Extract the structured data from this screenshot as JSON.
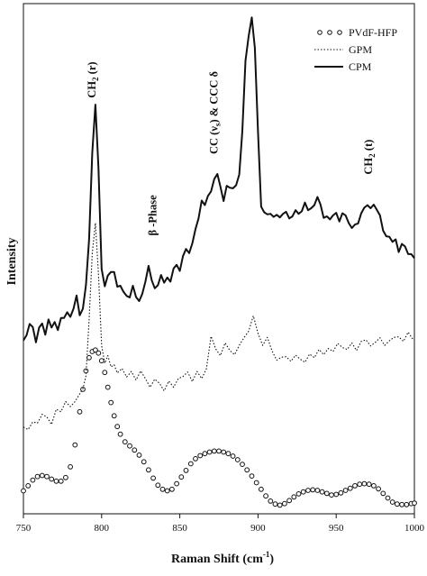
{
  "chart_data": {
    "type": "line",
    "xlabel": "Raman Shift (cm",
    "xlabel_sup": "-1",
    "xlabel_close": ")",
    "ylabel": "Intensity",
    "xlim": [
      750,
      1000
    ],
    "ylim": [
      0,
      100
    ],
    "x_ticks": [
      "750",
      "800",
      "850",
      "900",
      "950",
      "1000"
    ],
    "legend_position": "top-right",
    "colors": {
      "line": "#111111",
      "marker_fill": "#ffffff"
    },
    "annotations": [
      {
        "label": "CH",
        "sub": "2",
        "tail": " (r)",
        "x": 796,
        "y": 81.5,
        "rotate": true
      },
      {
        "label": "β -Phase",
        "sub": "",
        "tail": "",
        "x": 835,
        "y": 54.5,
        "rotate": true
      },
      {
        "label": "CC (ν",
        "sub": "s",
        "tail": ") & CCC δ",
        "x": 874,
        "y": 70.5,
        "rotate": true
      },
      {
        "label": "CH",
        "sub": "2",
        "tail": " (t)",
        "x": 973,
        "y": 66.5,
        "rotate": true
      }
    ],
    "series": [
      {
        "name": "PVdF-HFP",
        "style": "markers",
        "x": [
          750,
          753,
          756,
          759,
          762,
          765,
          768,
          771,
          774,
          777,
          780,
          783,
          786,
          788,
          790,
          792,
          794,
          796,
          798,
          800,
          802,
          804,
          806,
          808,
          810,
          812,
          815,
          818,
          821,
          824,
          827,
          830,
          833,
          836,
          839,
          842,
          845,
          848,
          851,
          854,
          857,
          860,
          863,
          866,
          869,
          872,
          875,
          878,
          881,
          884,
          887,
          890,
          893,
          896,
          899,
          902,
          905,
          908,
          911,
          914,
          917,
          920,
          923,
          926,
          929,
          932,
          935,
          938,
          941,
          944,
          947,
          950,
          953,
          956,
          959,
          962,
          965,
          968,
          971,
          974,
          977,
          980,
          983,
          986,
          989,
          992,
          995,
          998,
          1000
        ],
        "y": [
          4.5,
          5.5,
          6.6,
          7.3,
          7.5,
          7.3,
          6.8,
          6.4,
          6.4,
          7.1,
          9.2,
          13.5,
          20.0,
          24.4,
          28.0,
          30.6,
          31.8,
          32.1,
          31.5,
          30.0,
          27.7,
          24.8,
          21.8,
          19.2,
          17.1,
          15.6,
          14.1,
          13.3,
          12.5,
          11.5,
          10.2,
          8.6,
          7.0,
          5.6,
          4.8,
          4.5,
          4.8,
          5.9,
          7.2,
          8.5,
          9.8,
          10.8,
          11.4,
          11.8,
          12.1,
          12.3,
          12.3,
          12.1,
          11.8,
          11.3,
          10.6,
          9.7,
          8.6,
          7.4,
          6.1,
          4.8,
          3.5,
          2.5,
          1.9,
          1.7,
          2.0,
          2.6,
          3.3,
          3.9,
          4.3,
          4.6,
          4.7,
          4.6,
          4.3,
          4.0,
          3.7,
          3.8,
          4.1,
          4.6,
          5.0,
          5.5,
          5.8,
          5.9,
          5.8,
          5.5,
          4.9,
          4.0,
          3.1,
          2.3,
          1.9,
          1.8,
          1.8,
          2.0,
          2.1
        ]
      },
      {
        "name": "GPM",
        "style": "dotted",
        "x": [
          750,
          753,
          756,
          759,
          762,
          765,
          768,
          771,
          774,
          777,
          780,
          783,
          786,
          788,
          790,
          792,
          794,
          796,
          798,
          800,
          802,
          804,
          806,
          808,
          810,
          813,
          816,
          819,
          822,
          825,
          828,
          831,
          834,
          837,
          840,
          843,
          846,
          849,
          852,
          855,
          858,
          861,
          864,
          867,
          870,
          873,
          876,
          879,
          882,
          885,
          888,
          891,
          894,
          897,
          900,
          903,
          906,
          909,
          912,
          915,
          918,
          921,
          924,
          927,
          930,
          933,
          936,
          939,
          942,
          945,
          948,
          951,
          954,
          957,
          960,
          963,
          966,
          969,
          972,
          975,
          978,
          981,
          984,
          987,
          990,
          993,
          996,
          999,
          1000
        ],
        "y": [
          17.0,
          16.5,
          18.0,
          17.8,
          19.5,
          19.0,
          17.5,
          20.5,
          20.0,
          22.0,
          21.0,
          22.0,
          23.5,
          24.5,
          27.0,
          38.0,
          51.0,
          57.0,
          47.0,
          33.0,
          29.5,
          31.0,
          28.8,
          29.2,
          27.6,
          28.5,
          26.8,
          27.9,
          26.2,
          28.0,
          26.5,
          24.8,
          26.4,
          25.6,
          24.1,
          26.0,
          24.8,
          26.5,
          26.9,
          27.8,
          25.9,
          27.9,
          26.5,
          28.4,
          34.8,
          32.3,
          31.0,
          33.5,
          32.0,
          31.2,
          33.0,
          34.5,
          35.8,
          38.8,
          35.4,
          33.0,
          34.6,
          31.9,
          30.1,
          30.7,
          30.8,
          29.9,
          31.1,
          30.3,
          29.7,
          31.3,
          30.6,
          32.2,
          31.2,
          32.4,
          31.8,
          33.4,
          32.6,
          32.2,
          33.5,
          32.0,
          33.8,
          34.1,
          32.9,
          33.6,
          34.5,
          33.0,
          33.9,
          34.6,
          34.7,
          33.8,
          35.6,
          34.2,
          34.0
        ]
      },
      {
        "name": "CPM",
        "style": "solid",
        "x": [
          750,
          752,
          754,
          756,
          758,
          760,
          762,
          764,
          766,
          768,
          770,
          772,
          774,
          776,
          778,
          780,
          782,
          784,
          786,
          788,
          790,
          792,
          794,
          796,
          798,
          800,
          802,
          804,
          806,
          808,
          810,
          812,
          814,
          816,
          818,
          820,
          822,
          824,
          826,
          828,
          830,
          832,
          834,
          836,
          838,
          840,
          842,
          844,
          846,
          848,
          850,
          852,
          854,
          856,
          858,
          860,
          862,
          864,
          866,
          868,
          870,
          872,
          874,
          876,
          878,
          880,
          882,
          884,
          886,
          888,
          890,
          892,
          894,
          896,
          898,
          900,
          902,
          904,
          906,
          908,
          910,
          912,
          914,
          916,
          918,
          920,
          922,
          924,
          926,
          928,
          930,
          932,
          934,
          936,
          938,
          940,
          942,
          944,
          946,
          948,
          950,
          952,
          954,
          956,
          958,
          960,
          962,
          964,
          966,
          968,
          970,
          972,
          974,
          976,
          978,
          980,
          982,
          984,
          986,
          988,
          990,
          992,
          994,
          996,
          998,
          1000
        ],
        "y": [
          34.0,
          35.0,
          37.2,
          36.6,
          33.6,
          36.5,
          37.3,
          35.1,
          38.1,
          36.5,
          37.6,
          36.0,
          38.4,
          38.4,
          39.5,
          38.6,
          40.2,
          42.8,
          38.9,
          40.2,
          44.8,
          53.8,
          70.7,
          80.2,
          67.8,
          48.0,
          44.6,
          46.7,
          47.4,
          47.4,
          44.5,
          44.7,
          43.5,
          42.7,
          42.4,
          44.7,
          42.5,
          41.7,
          43.1,
          45.5,
          48.6,
          45.8,
          44.2,
          44.8,
          46.8,
          45.3,
          46.3,
          45.5,
          48.1,
          48.8,
          47.6,
          50.5,
          51.9,
          51.1,
          53.0,
          55.8,
          57.9,
          61.4,
          60.5,
          62.3,
          63.2,
          65.6,
          66.6,
          64.1,
          61.3,
          64.3,
          63.9,
          63.8,
          64.4,
          66.5,
          75.0,
          88.8,
          93.6,
          97.3,
          91.3,
          74.9,
          60.2,
          59.1,
          58.7,
          58.8,
          58.2,
          58.6,
          58.1,
          58.8,
          59.2,
          57.9,
          58.3,
          59.5,
          58.8,
          59.3,
          61.0,
          59.5,
          59.9,
          60.5,
          62.1,
          60.6,
          58.0,
          58.3,
          57.7,
          58.5,
          59.0,
          57.3,
          58.9,
          58.5,
          57.0,
          56.0,
          56.7,
          56.9,
          58.9,
          60.0,
          60.5,
          59.9,
          60.6,
          59.6,
          58.5,
          55.5,
          54.4,
          54.3,
          53.3,
          53.8,
          51.3,
          52.9,
          52.4,
          50.9,
          50.9,
          50.1
        ]
      }
    ]
  }
}
